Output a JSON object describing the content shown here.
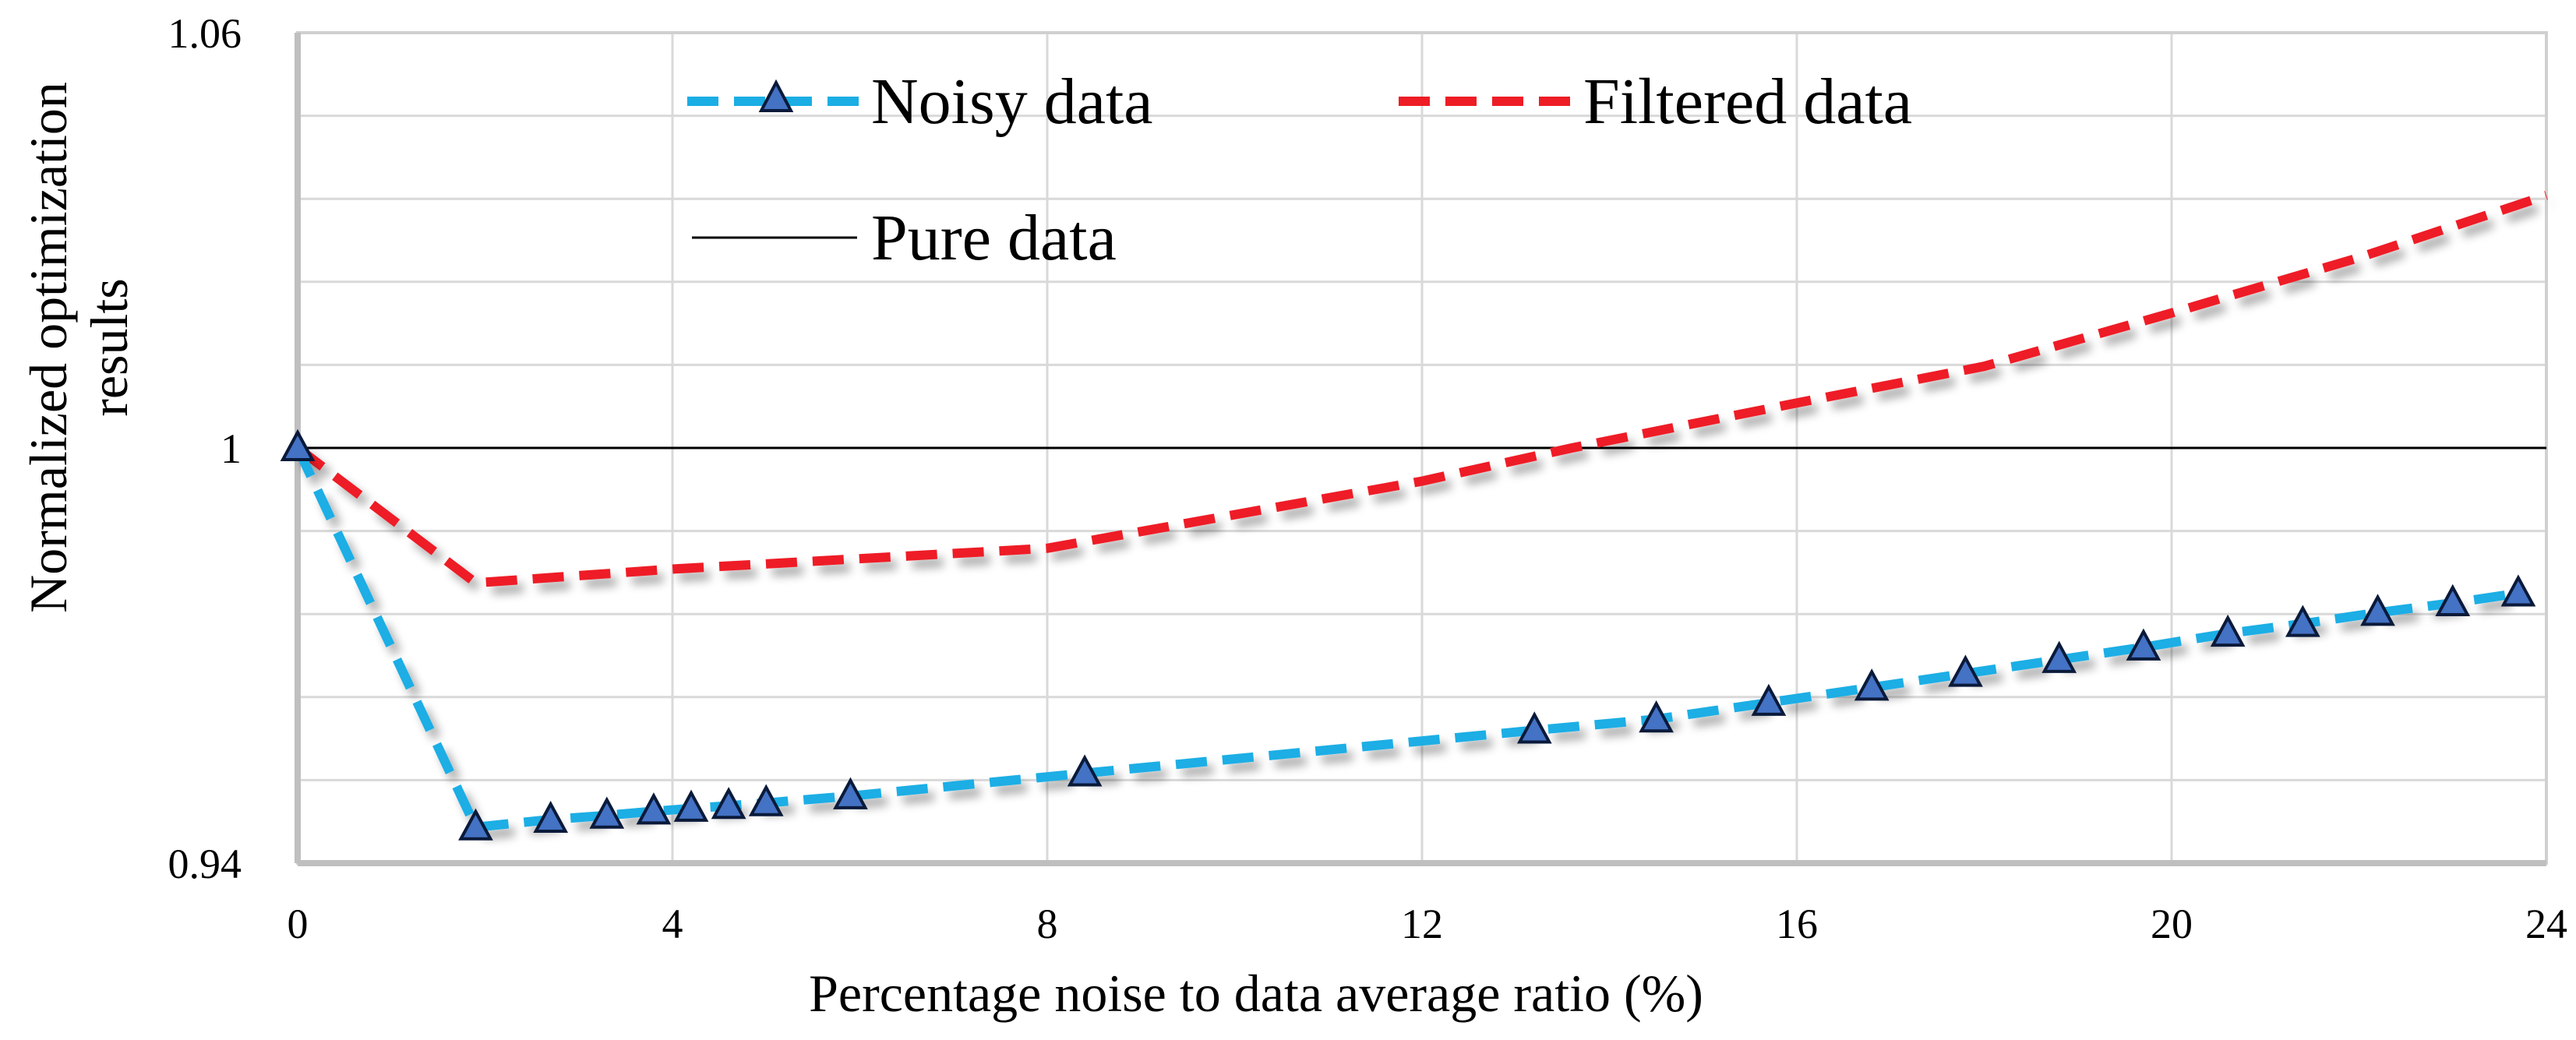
{
  "chart_data": {
    "type": "line",
    "title": "",
    "xlabel": "Percentage noise to data average ratio (%)",
    "ylabel_lines": [
      "Normalized optimization",
      "results"
    ],
    "xlim": [
      0,
      24
    ],
    "ylim": [
      0.94,
      1.06
    ],
    "x_ticks": [
      0,
      4,
      8,
      12,
      16,
      20,
      24
    ],
    "x_tick_labels": [
      "0",
      "4",
      "8",
      "12",
      "16",
      "20",
      "24"
    ],
    "y_ticks": [
      0.94,
      1,
      1.06
    ],
    "y_tick_labels": [
      "0.94",
      "1",
      "1.06"
    ],
    "y_grid_step": 0.012,
    "x_grid_step": 4,
    "grid": true,
    "legend_position": "top-center",
    "series": [
      {
        "name": "Noisy data",
        "style": "dashed",
        "marker": "triangle",
        "color": "#1aaee5",
        "marker_fill": "#4472c4",
        "x": [
          0,
          1.9,
          2.7,
          3.3,
          3.8,
          4.2,
          4.6,
          5.0,
          5.9,
          8.4,
          13.2,
          14.5,
          15.7,
          16.8,
          17.8,
          18.8,
          19.7,
          20.6,
          21.4,
          22.2,
          23.0,
          23.7
        ],
        "y": [
          1.0,
          0.9452,
          0.9463,
          0.9469,
          0.9475,
          0.9479,
          0.9483,
          0.9487,
          0.9497,
          0.953,
          0.9592,
          0.9608,
          0.9632,
          0.9654,
          0.9674,
          0.9694,
          0.9712,
          0.9732,
          0.9746,
          0.9762,
          0.9776,
          0.979
        ]
      },
      {
        "name": "Filtered data",
        "style": "dashed",
        "marker": "none",
        "color": "#ee1c25",
        "x": [
          0,
          1.9,
          4.0,
          8.0,
          12.0,
          13.6,
          16.0,
          18.0,
          20.0,
          22.0,
          24.0
        ],
        "y": [
          1.0,
          0.9805,
          0.9825,
          0.9855,
          0.9952,
          1.0,
          1.0065,
          1.0118,
          1.0195,
          1.0275,
          1.0365
        ]
      },
      {
        "name": "Pure data",
        "style": "solid",
        "marker": "none",
        "color": "#000000",
        "x": [
          0,
          24
        ],
        "y": [
          1.0,
          1.0
        ]
      }
    ]
  }
}
